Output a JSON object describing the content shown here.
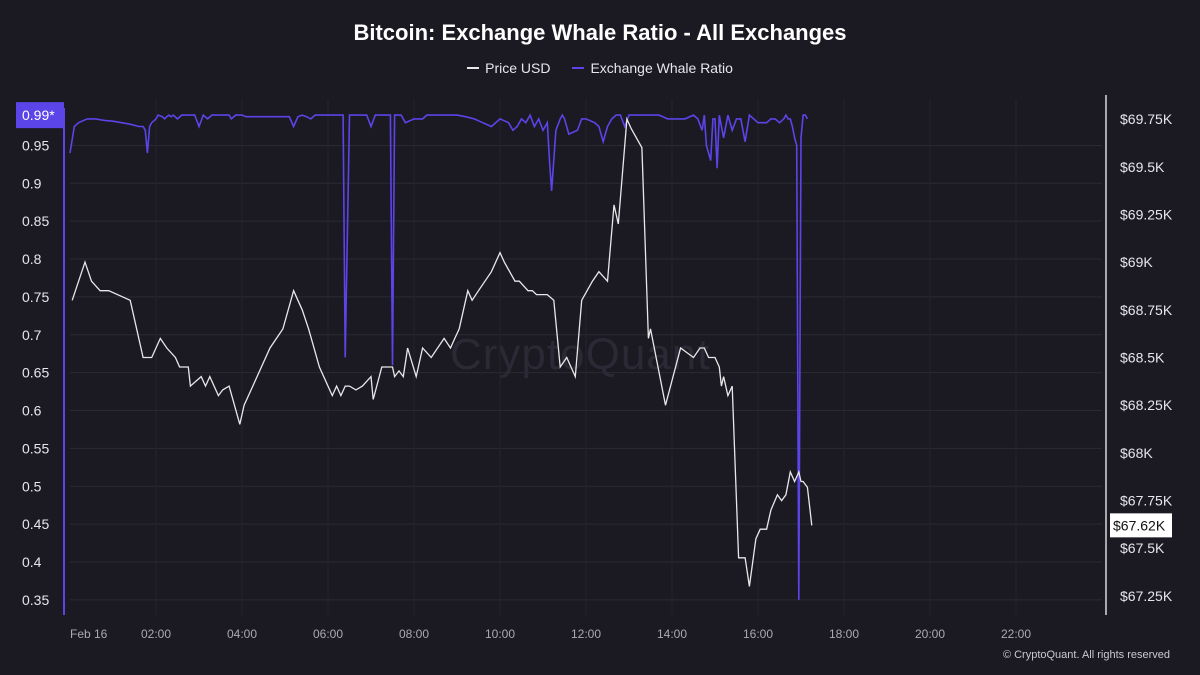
{
  "chart_data": {
    "type": "line",
    "title": "Bitcoin: Exchange Whale Ratio - All Exchanges",
    "footer": "© CryptoQuant. All rights reserved",
    "watermark": "CryptoQuant",
    "x_ticks": [
      "Feb 16",
      "02:00",
      "04:00",
      "06:00",
      "08:00",
      "10:00",
      "12:00",
      "14:00",
      "16:00",
      "18:00",
      "20:00",
      "22:00"
    ],
    "x_range_hours": [
      0,
      24
    ],
    "left_axis": {
      "ticks": [
        "0.35",
        "0.4",
        "0.45",
        "0.5",
        "0.55",
        "0.6",
        "0.65",
        "0.7",
        "0.75",
        "0.8",
        "0.85",
        "0.9",
        "0.95"
      ],
      "range": [
        0.33,
        1.01
      ],
      "current_label": "0.99*"
    },
    "right_axis": {
      "ticks": [
        "$67.25K",
        "$67.5K",
        "$67.75K",
        "$68K",
        "$68.25K",
        "$68.5K",
        "$68.75K",
        "$69K",
        "$69.25K",
        "$69.5K",
        "$69.75K"
      ],
      "tick_values": [
        67.25,
        67.5,
        67.75,
        68.0,
        68.25,
        68.5,
        68.75,
        69.0,
        69.25,
        69.5,
        69.75
      ],
      "range": [
        67.15,
        69.85
      ],
      "current_label": "$67.62K",
      "current_value": 67.62
    },
    "colors": {
      "price": "#e8e8ea",
      "whale": "#5b44e8",
      "background": "#1b1a22",
      "grid": "#2b2a33"
    },
    "series": [
      {
        "name": "Price USD",
        "axis": "right",
        "x": [
          0.05,
          0.35,
          0.5,
          0.7,
          0.9,
          1.4,
          1.7,
          1.9,
          2.1,
          2.25,
          2.45,
          2.55,
          2.75,
          2.8,
          3.05,
          3.15,
          3.25,
          3.45,
          3.55,
          3.7,
          3.95,
          4.05,
          4.25,
          4.45,
          4.65,
          4.95,
          5.2,
          5.3,
          5.4,
          5.55,
          5.8,
          6.0,
          6.1,
          6.2,
          6.3,
          6.4,
          6.5,
          6.65,
          6.8,
          7.0,
          7.05,
          7.25,
          7.5,
          7.55,
          7.65,
          7.75,
          7.85,
          8.05,
          8.2,
          8.4,
          8.7,
          8.85,
          8.95,
          9.05,
          9.15,
          9.25,
          9.35,
          9.5,
          9.8,
          10.0,
          10.1,
          10.35,
          10.45,
          10.65,
          10.75,
          10.85,
          11.1,
          11.25,
          11.4,
          11.55,
          11.75,
          11.9,
          12.15,
          12.3,
          12.5,
          12.65,
          12.75,
          12.95,
          13.05,
          13.3,
          13.45,
          13.5,
          13.85,
          14.2,
          14.5,
          14.65,
          14.75,
          14.85,
          15.0,
          15.1,
          15.15,
          15.2,
          15.3,
          15.4,
          15.55,
          15.7,
          15.8,
          15.95,
          16.05,
          16.2,
          16.3,
          16.45,
          16.55,
          16.65,
          16.75,
          16.85,
          16.95,
          17.0,
          17.05,
          17.15,
          17.25
        ],
        "values": [
          68.8,
          69.0,
          68.9,
          68.85,
          68.85,
          68.8,
          68.5,
          68.5,
          68.6,
          68.55,
          68.5,
          68.45,
          68.45,
          68.35,
          68.4,
          68.35,
          68.4,
          68.3,
          68.33,
          68.35,
          68.15,
          68.25,
          68.35,
          68.45,
          68.55,
          68.65,
          68.85,
          68.8,
          68.75,
          68.65,
          68.45,
          68.35,
          68.3,
          68.35,
          68.3,
          68.35,
          68.35,
          68.33,
          68.35,
          68.4,
          68.28,
          68.45,
          68.45,
          68.4,
          68.43,
          68.4,
          68.55,
          68.4,
          68.55,
          68.5,
          68.6,
          68.55,
          68.6,
          68.65,
          68.75,
          68.85,
          68.8,
          68.85,
          68.95,
          69.05,
          69.0,
          68.9,
          68.9,
          68.85,
          68.85,
          68.83,
          68.83,
          68.8,
          68.45,
          68.5,
          68.4,
          68.8,
          68.9,
          68.95,
          68.9,
          69.3,
          69.2,
          69.75,
          69.7,
          69.6,
          68.6,
          68.65,
          68.25,
          68.55,
          68.5,
          68.55,
          68.55,
          68.5,
          68.5,
          68.45,
          68.35,
          68.4,
          68.3,
          68.35,
          67.45,
          67.45,
          67.3,
          67.55,
          67.6,
          67.6,
          67.7,
          67.78,
          67.75,
          67.78,
          67.9,
          67.85,
          67.9,
          67.85,
          67.85,
          67.82,
          67.62
        ]
      },
      {
        "name": "Exchange Whale Ratio",
        "axis": "left",
        "x": [
          0.0,
          0.1,
          0.2,
          0.4,
          0.6,
          0.8,
          1.0,
          1.2,
          1.4,
          1.6,
          1.7,
          1.75,
          1.8,
          1.85,
          1.9,
          2.0,
          2.05,
          2.15,
          2.2,
          2.25,
          2.3,
          2.35,
          2.4,
          2.5,
          2.6,
          2.7,
          2.8,
          2.9,
          3.0,
          3.1,
          3.2,
          3.3,
          3.4,
          3.5,
          3.6,
          3.7,
          3.75,
          3.85,
          3.9,
          3.95,
          4.0,
          4.1,
          4.3,
          4.5,
          4.7,
          4.8,
          4.85,
          4.95,
          5.1,
          5.2,
          5.3,
          5.4,
          5.5,
          5.6,
          5.7,
          5.8,
          5.9,
          6.0,
          6.1,
          6.2,
          6.25,
          6.3,
          6.35,
          6.4,
          6.5,
          6.7,
          6.8,
          6.9,
          7.0,
          7.1,
          7.2,
          7.3,
          7.4,
          7.45,
          7.5,
          7.55,
          7.6,
          7.7,
          7.8,
          8.0,
          8.2,
          8.3,
          8.4,
          8.6,
          8.8,
          9.0,
          9.2,
          9.4,
          9.6,
          9.8,
          10.0,
          10.2,
          10.3,
          10.4,
          10.5,
          10.6,
          10.7,
          10.8,
          10.9,
          11.0,
          11.1,
          11.15,
          11.2,
          11.3,
          11.4,
          11.45,
          11.5,
          11.6,
          11.8,
          11.9,
          12.0,
          12.2,
          12.3,
          12.4,
          12.5,
          12.6,
          12.7,
          12.8,
          12.9,
          13.0,
          13.1,
          13.3,
          13.5,
          13.7,
          13.9,
          14.1,
          14.3,
          14.5,
          14.6,
          14.7,
          14.75,
          14.8,
          14.9,
          14.95,
          15.0,
          15.05,
          15.1,
          15.2,
          15.3,
          15.4,
          15.5,
          15.6,
          15.7,
          15.8,
          15.9,
          16.0,
          16.1,
          16.2,
          16.3,
          16.4,
          16.5,
          16.6,
          16.65,
          16.7,
          16.75,
          16.8,
          16.85,
          16.9,
          16.95,
          17.0,
          17.05,
          17.1,
          17.15
        ],
        "values": [
          0.94,
          0.975,
          0.98,
          0.985,
          0.985,
          0.983,
          0.982,
          0.98,
          0.978,
          0.975,
          0.975,
          0.97,
          0.94,
          0.975,
          0.98,
          0.985,
          0.99,
          0.988,
          0.985,
          0.988,
          0.99,
          0.988,
          0.99,
          0.985,
          0.99,
          0.99,
          0.99,
          0.99,
          0.975,
          0.99,
          0.985,
          0.99,
          0.99,
          0.99,
          0.99,
          0.99,
          0.985,
          0.99,
          0.99,
          0.99,
          0.99,
          0.988,
          0.988,
          0.988,
          0.988,
          0.988,
          0.988,
          0.988,
          0.988,
          0.975,
          0.988,
          0.99,
          0.988,
          0.985,
          0.99,
          0.99,
          0.99,
          0.99,
          0.99,
          0.99,
          0.99,
          0.99,
          0.99,
          0.67,
          0.99,
          0.99,
          0.99,
          0.99,
          0.975,
          0.99,
          0.99,
          0.99,
          0.99,
          0.99,
          0.66,
          0.99,
          0.99,
          0.99,
          0.98,
          0.985,
          0.985,
          0.99,
          0.99,
          0.99,
          0.99,
          0.99,
          0.988,
          0.985,
          0.98,
          0.975,
          0.985,
          0.98,
          0.97,
          0.975,
          0.985,
          0.98,
          0.99,
          0.975,
          0.985,
          0.97,
          0.98,
          0.93,
          0.89,
          0.97,
          0.985,
          0.99,
          0.985,
          0.965,
          0.97,
          0.985,
          0.985,
          0.98,
          0.975,
          0.955,
          0.975,
          0.985,
          0.99,
          0.99,
          0.975,
          0.99,
          0.99,
          0.99,
          0.99,
          0.99,
          0.985,
          0.985,
          0.985,
          0.99,
          0.985,
          0.97,
          0.99,
          0.95,
          0.93,
          0.985,
          0.985,
          0.92,
          0.99,
          0.96,
          0.99,
          0.97,
          0.985,
          0.985,
          0.955,
          0.99,
          0.985,
          0.98,
          0.98,
          0.98,
          0.985,
          0.985,
          0.98,
          0.985,
          0.99,
          0.985,
          0.985,
          0.975,
          0.96,
          0.95,
          0.35,
          0.96,
          0.99,
          0.99,
          0.985
        ]
      }
    ]
  }
}
